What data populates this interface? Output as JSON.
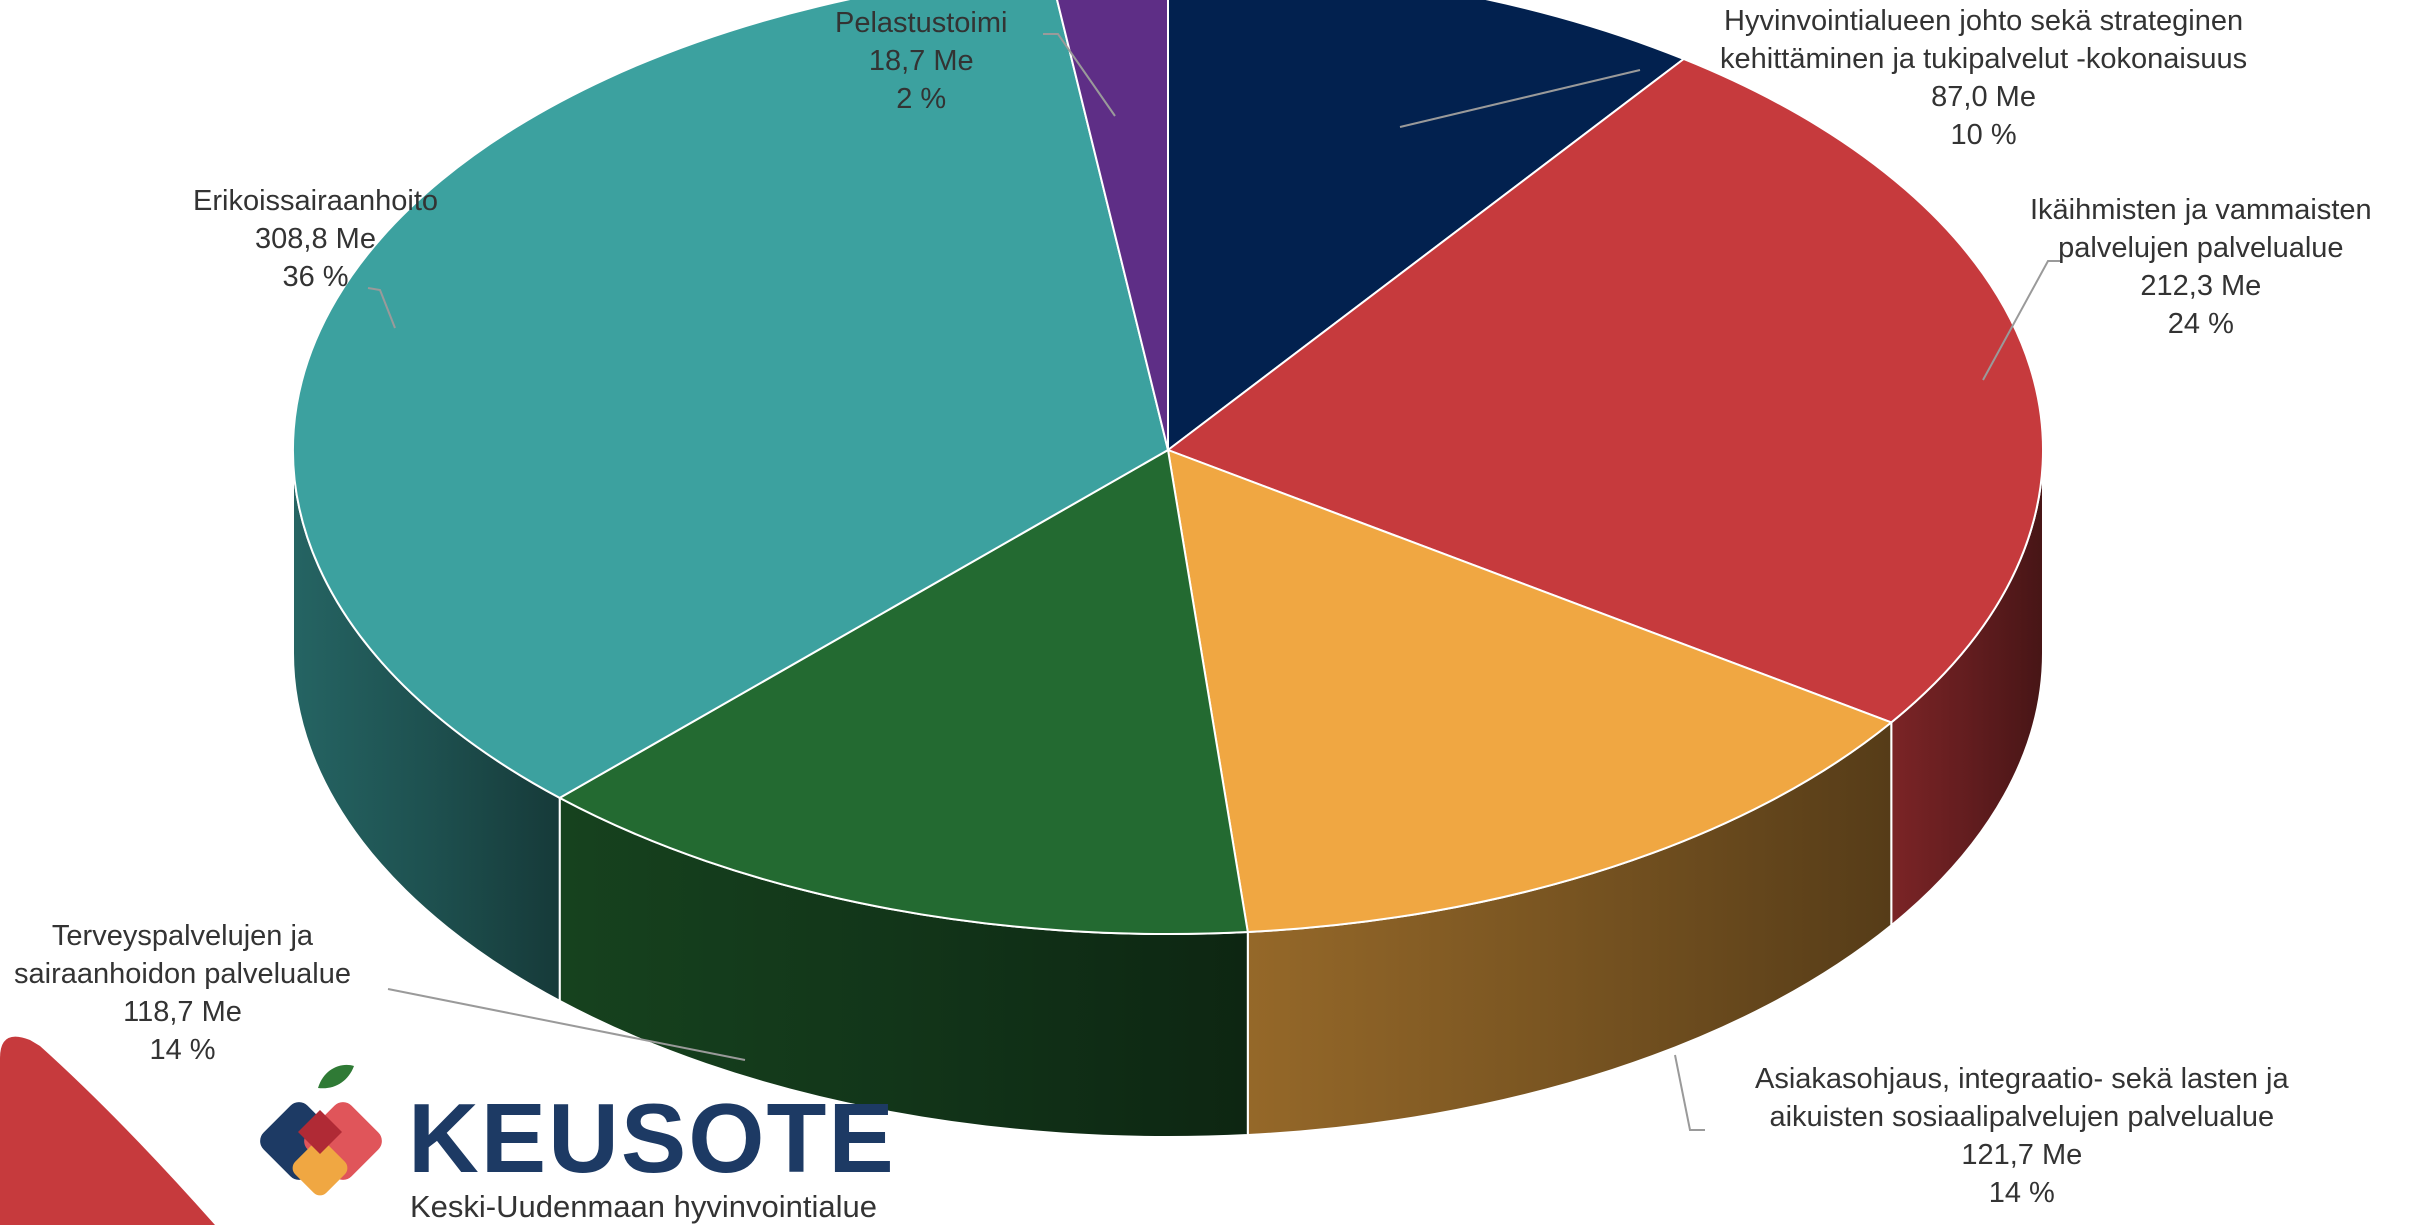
{
  "chart_data": {
    "type": "pie",
    "style": "3d",
    "slices": [
      {
        "label": [
          "Hyvinvointialueen johto sekä strateginen",
          "kehittäminen ja tukipalvelut -kokonaisuus"
        ],
        "value": 87.0,
        "value_text": "87,0 Me",
        "percent": 10,
        "percent_text": "10 %",
        "color": "#02214f"
      },
      {
        "label": [
          "Ikäihmisten ja vammaisten",
          "palvelujen palvelualue"
        ],
        "value": 212.3,
        "value_text": "212,3 Me",
        "percent": 24,
        "percent_text": "24 %",
        "color": "#c63a3d"
      },
      {
        "label": [
          "Asiakasohjaus, integraatio- sekä lasten ja",
          "aikuisten sosiaalipalvelujen palvelualue"
        ],
        "value": 121.7,
        "value_text": "121,7 Me",
        "percent": 14,
        "percent_text": "14 %",
        "color": "#f0a742"
      },
      {
        "label": [
          "Terveyspalvelujen ja",
          "sairaanhoidon palvelualue"
        ],
        "value": 118.7,
        "value_text": "118,7 Me",
        "percent": 14,
        "percent_text": "14 %",
        "color": "#236a31"
      },
      {
        "label": [
          "Erikoissairaanhoito"
        ],
        "value": 308.8,
        "value_text": "308,8 Me",
        "percent": 36,
        "percent_text": "36 %",
        "color": "#3ca19f"
      },
      {
        "label": [
          "Pelastustoimi"
        ],
        "value": 18.7,
        "value_text": "18,7 Me",
        "percent": 2,
        "percent_text": "2 %",
        "color": "#5e2e86"
      }
    ]
  },
  "branding": {
    "name": "KEUSOTE",
    "subtitle": "Keski-Uudenmaan hyvinvointialue",
    "colors": {
      "navy": "#1d3a64",
      "red": "#e0555a",
      "orange": "#f0a742",
      "green": "#2f7a35",
      "corner": "#c63a3d"
    }
  }
}
